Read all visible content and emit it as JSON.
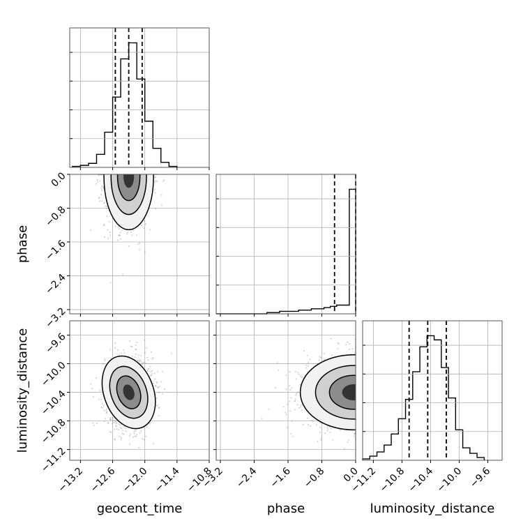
{
  "chart_data": {
    "type": "corner",
    "parameters": [
      "geocent_time",
      "phase",
      "luminosity_distance"
    ],
    "axis_labels": {
      "geocent_time": "geocent_time",
      "phase": "phase",
      "luminosity_distance": "luminosity_distance"
    },
    "ranges": {
      "geocent_time": [
        -13.4,
        -10.8
      ],
      "phase": [
        -3.3,
        0.0
      ],
      "luminosity_distance": [
        -11.35,
        -9.4
      ]
    },
    "ticks": {
      "geocent_time": [
        -13.2,
        -12.6,
        -12.0,
        -11.4,
        -10.8
      ],
      "phase": [
        -3.2,
        -2.4,
        -1.6,
        -0.8,
        0.0
      ],
      "luminosity_distance": [
        -11.2,
        -10.8,
        -10.4,
        -10.0,
        -9.6
      ]
    },
    "tick_labels": {
      "geocent_time": [
        "−13.2",
        "−12.6",
        "−12.0",
        "−11.4",
        "−10.8"
      ],
      "phase": [
        "−3.2",
        "−2.4",
        "−1.6",
        "−0.8",
        "0.0"
      ],
      "luminosity_distance": [
        "−11.2",
        "−10.8",
        "−10.4",
        "−10.0",
        "−9.6"
      ]
    },
    "quantiles": {
      "geocent_time": [
        -12.55,
        -12.3,
        -12.05
      ],
      "phase": [
        -0.5,
        0.0
      ],
      "luminosity_distance": [
        -10.7,
        -10.44,
        -10.18
      ]
    },
    "histograms": {
      "geocent_time": {
        "edges": [
          -13.35,
          -13.2,
          -13.05,
          -12.9,
          -12.75,
          -12.6,
          -12.45,
          -12.3,
          -12.15,
          -12.0,
          -11.85,
          -11.7,
          -11.55,
          -11.4
        ],
        "counts": [
          1,
          2,
          4,
          13,
          35,
          70,
          108,
          124,
          88,
          46,
          19,
          5,
          1
        ]
      },
      "phase": {
        "edges": [
          -3.3,
          -3.0,
          -2.7,
          -2.4,
          -2.1,
          -1.8,
          -1.5,
          -1.35,
          -1.2,
          -1.05,
          -0.9,
          -0.75,
          -0.6,
          -0.45,
          -0.3,
          -0.15,
          0.0
        ],
        "counts": [
          0,
          0,
          0,
          0,
          1,
          2,
          2,
          3,
          3,
          4,
          4,
          5,
          6,
          7,
          7,
          100
        ]
      },
      "luminosity_distance": {
        "edges": [
          -11.35,
          -11.25,
          -11.15,
          -11.05,
          -10.95,
          -10.85,
          -10.75,
          -10.65,
          -10.55,
          -10.45,
          -10.35,
          -10.25,
          -10.15,
          -10.05,
          -9.95,
          -9.85,
          -9.75,
          -9.65
        ],
        "counts": [
          1,
          3,
          6,
          11,
          19,
          30,
          44,
          64,
          82,
          90,
          87,
          67,
          45,
          22,
          9,
          5,
          2
        ]
      }
    },
    "density_2d": [
      {
        "x": "geocent_time",
        "y": "phase",
        "center": [
          -12.3,
          -0.05
        ],
        "sigma": [
          0.22,
          0.6
        ]
      },
      {
        "x": "geocent_time",
        "y": "luminosity_distance",
        "center": [
          -12.3,
          -10.4
        ],
        "sigma": [
          0.22,
          0.25
        ]
      },
      {
        "x": "phase",
        "y": "luminosity_distance",
        "center": [
          -0.05,
          -10.4
        ],
        "sigma": [
          0.6,
          0.25
        ]
      }
    ],
    "grid": true,
    "color": "#000000"
  }
}
